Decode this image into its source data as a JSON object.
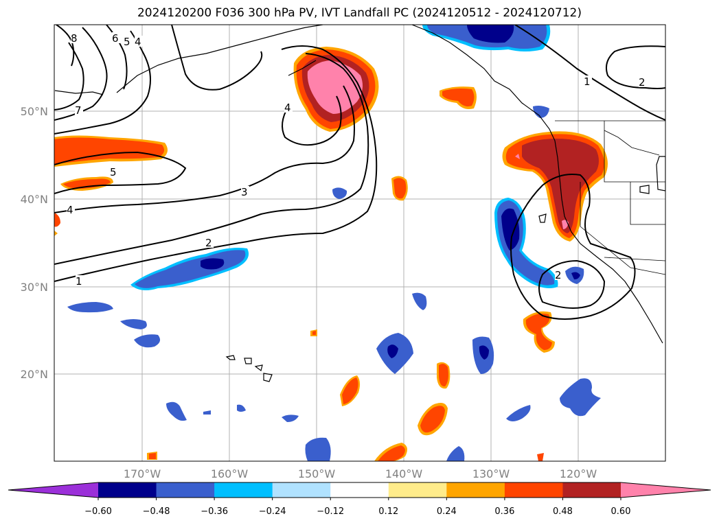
{
  "title": "2024120200 F036 300 hPa PV, IVT Landfall PC (2024120512 - 2024120712)",
  "lat_labels": [
    "50°N",
    "40°N",
    "30°N",
    "20°N"
  ],
  "lon_labels": [
    "170°W",
    "160°W",
    "150°W",
    "140°W",
    "130°W",
    "120°W"
  ],
  "colorbar": {
    "colors": [
      "#9b30d9",
      "#00008b",
      "#3a5fcd",
      "#00bfff",
      "#b0e2ff",
      "#ffffff",
      "#ffec8b",
      "#ffa500",
      "#ff4500",
      "#b22222",
      "#ff82ab"
    ],
    "tick_labels": [
      "−0.60",
      "−0.48",
      "−0.36",
      "−0.24",
      "−0.12",
      "0.12",
      "0.24",
      "0.36",
      "0.48",
      "0.60"
    ]
  },
  "contour_labels": {
    "c8": "8",
    "c6": "6",
    "c5a": "5",
    "c4a": "4",
    "c7": "7",
    "c5b": "5",
    "c4b": "4",
    "c1a": "1",
    "c4c": "4",
    "c3": "3",
    "c2a": "2",
    "c1b": "1",
    "c2b": "2",
    "c2c": "2"
  }
}
